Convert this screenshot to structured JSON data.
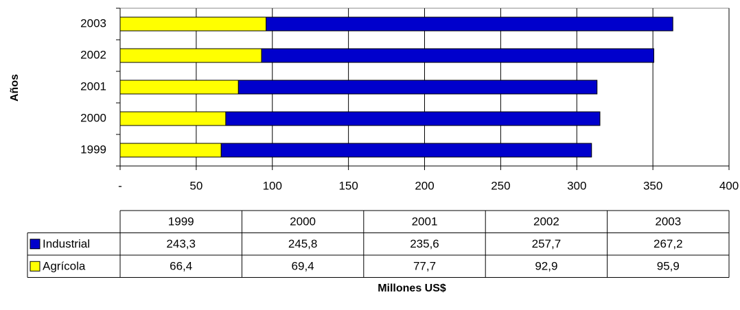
{
  "chart_data": {
    "type": "stacked_barh",
    "y_axis_label": "Años",
    "x_axis_label": "Millones US$",
    "categories": [
      "1999",
      "2000",
      "2001",
      "2002",
      "2003"
    ],
    "series": [
      {
        "name": "Industrial",
        "color": "#0000cc",
        "values": [
          243.3,
          245.8,
          235.6,
          257.7,
          267.2
        ],
        "value_labels": [
          "243,3",
          "245,8",
          "235,6",
          "257,7",
          "267,2"
        ]
      },
      {
        "name": "Agrícola",
        "color": "#ffff00",
        "values": [
          66.4,
          69.4,
          77.7,
          92.9,
          95.9
        ],
        "value_labels": [
          "66,4",
          "69,4",
          "77,7",
          "92,9",
          "95,9"
        ]
      }
    ],
    "xlim": [
      0,
      400
    ],
    "xticks": [
      {
        "value": 0,
        "label": "-"
      },
      50,
      100,
      150,
      200,
      250,
      300,
      350,
      400
    ],
    "grid": true,
    "data_table": true
  }
}
